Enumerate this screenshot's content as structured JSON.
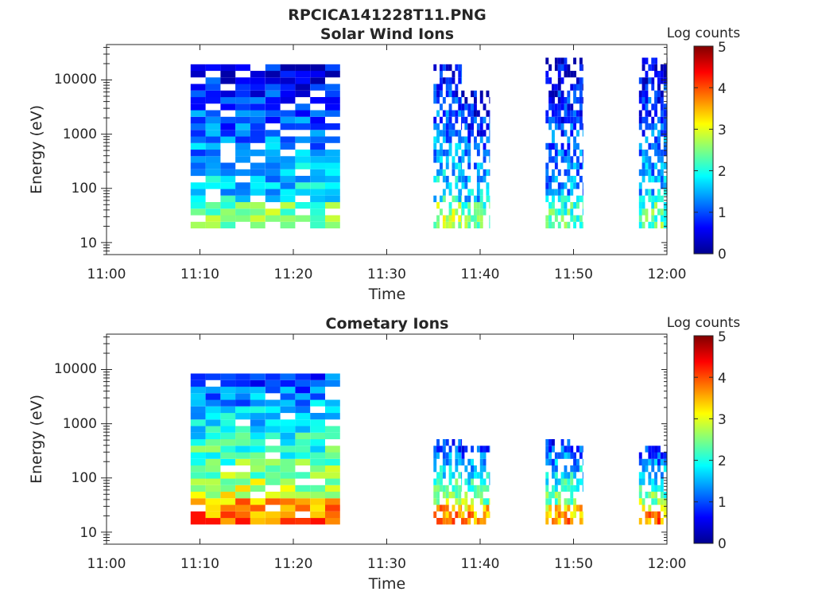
{
  "figure": {
    "title": "RPCICA141228T11.PNG"
  },
  "chart_data": [
    {
      "type": "heatmap",
      "title": "Solar Wind Ions",
      "xlabel": "Time",
      "ylabel": "Energy (eV)",
      "xlim": [
        "11:00",
        "12:00"
      ],
      "ylim": [
        6,
        45000
      ],
      "y_scale": "log",
      "x_ticks": [
        "11:00",
        "11:10",
        "11:20",
        "11:30",
        "11:40",
        "11:50",
        "12:00"
      ],
      "y_ticks": [
        "10",
        "100",
        "1000",
        "10000"
      ],
      "colorbar": {
        "label": "Log counts",
        "range": [
          0,
          5
        ],
        "ticks": [
          "0",
          "1",
          "2",
          "3",
          "4",
          "5"
        ],
        "colormap": "jet"
      },
      "bursts": [
        {
          "start": "11:09",
          "end": "11:25",
          "e_min": 20,
          "e_max": 15000,
          "level": 1.6
        },
        {
          "start": "11:35",
          "end": "11:38",
          "e_min": 20,
          "e_max": 15000,
          "level": 1.7
        },
        {
          "start": "11:38",
          "end": "11:41",
          "e_min": 20,
          "e_max": 5000,
          "level": 1.5
        },
        {
          "start": "11:47",
          "end": "11:51",
          "e_min": 20,
          "e_max": 20000,
          "level": 1.3
        },
        {
          "start": "11:57",
          "end": "12:00",
          "e_min": 20,
          "e_max": 20000,
          "level": 1.4
        }
      ]
    },
    {
      "type": "heatmap",
      "title": "Cometary Ions",
      "xlabel": "Time",
      "ylabel": "Energy (eV)",
      "xlim": [
        "11:00",
        "12:00"
      ],
      "ylim": [
        6,
        45000
      ],
      "y_scale": "log",
      "x_ticks": [
        "11:00",
        "11:10",
        "11:20",
        "11:30",
        "11:40",
        "11:50",
        "12:00"
      ],
      "y_ticks": [
        "10",
        "100",
        "1000",
        "10000"
      ],
      "colorbar": {
        "label": "Log counts",
        "range": [
          0,
          5
        ],
        "ticks": [
          "0",
          "1",
          "2",
          "3",
          "4",
          "5"
        ],
        "colormap": "jet"
      },
      "bursts": [
        {
          "start": "11:09",
          "end": "11:25",
          "e_min": 16,
          "e_max": 7000,
          "level": 2.6
        },
        {
          "start": "11:35",
          "end": "11:38",
          "e_min": 18,
          "e_max": 400,
          "level": 2.5
        },
        {
          "start": "11:38",
          "end": "11:41",
          "e_min": 18,
          "e_max": 300,
          "level": 2.4
        },
        {
          "start": "11:47",
          "end": "11:51",
          "e_min": 18,
          "e_max": 400,
          "level": 2.3
        },
        {
          "start": "11:57",
          "end": "12:00",
          "e_min": 18,
          "e_max": 300,
          "level": 2.4
        }
      ]
    }
  ]
}
